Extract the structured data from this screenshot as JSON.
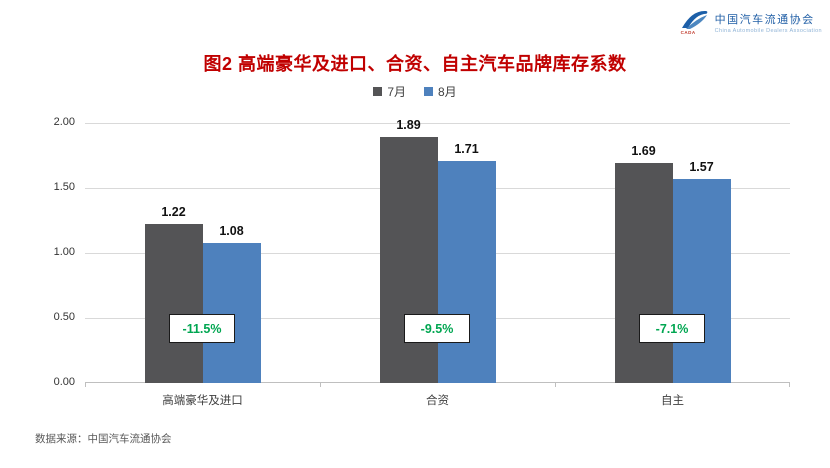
{
  "logo": {
    "org_cn": "中国汽车流通协会",
    "org_en": "China Automobile Dealers Association",
    "badge": "CADA",
    "color": "#215fa6"
  },
  "title": {
    "text": "图2 高端豪华及进口、合资、自主汽车品牌库存系数",
    "color": "#C00000"
  },
  "chart_data": {
    "type": "bar",
    "title": "图2 高端豪华及进口、合资、自主汽车品牌库存系数",
    "categories": [
      "高端豪华及进口",
      "合资",
      "自主"
    ],
    "series": [
      {
        "name": "7月",
        "color": "#545456",
        "values": [
          1.22,
          1.89,
          1.69
        ]
      },
      {
        "name": "8月",
        "color": "#4E81BD",
        "values": [
          1.08,
          1.71,
          1.57
        ]
      }
    ],
    "change_labels": [
      "-11.5%",
      "-9.5%",
      "-7.1%"
    ],
    "change_color": "#00A651",
    "ylim": [
      0,
      2.0
    ],
    "yticks": [
      "0.00",
      "0.50",
      "1.00",
      "1.50",
      "2.00"
    ],
    "grid": true,
    "legend_position": "top",
    "xlabel": "",
    "ylabel": ""
  },
  "footer": {
    "source": "数据来源：中国汽车流通协会"
  }
}
